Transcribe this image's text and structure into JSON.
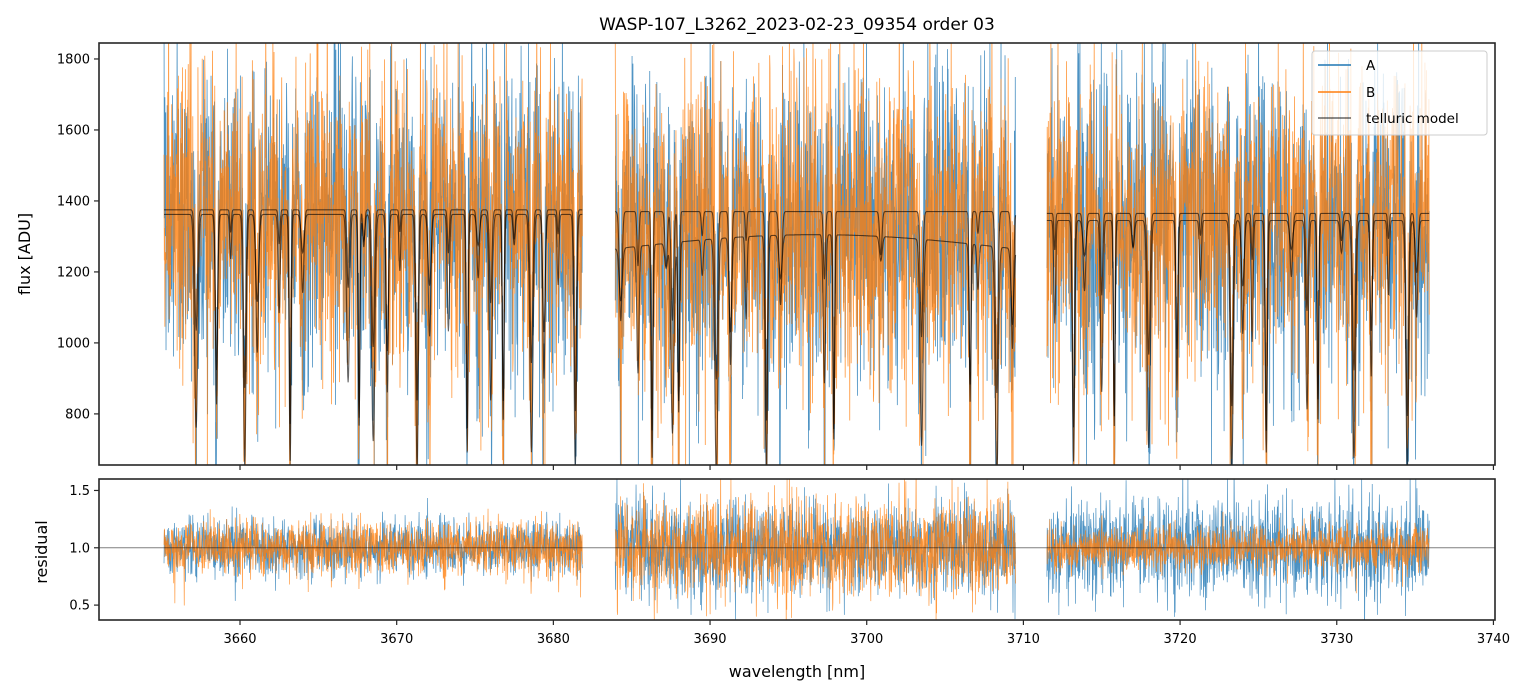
{
  "chart_data": [
    {
      "id": "flux-panel",
      "type": "line",
      "title": "WASP-107_L3262_2023-02-23_09354  order 03",
      "xlabel": "",
      "ylabel": "flux [ADU]",
      "xlim": [
        3651.0,
        3740.1
      ],
      "ylim": [
        656,
        1845
      ],
      "yticks": [
        800,
        1000,
        1200,
        1400,
        1600,
        1800
      ],
      "ytick_labels": [
        "800",
        "1000",
        "1200",
        "1400",
        "1600",
        "1800"
      ],
      "xticks": [
        3660,
        3670,
        3680,
        3690,
        3700,
        3710,
        3720,
        3730,
        3740
      ],
      "xtick_labels_hidden": true,
      "grid": false,
      "legend": {
        "placement": "top-right",
        "entries": [
          {
            "label": "A",
            "color": "#1f77b4"
          },
          {
            "label": "B",
            "color": "#ff7f0e"
          },
          {
            "label": "telluric model",
            "color": "#000000"
          }
        ]
      },
      "segments": [
        {
          "x_start": 3655.15,
          "x_end": 3681.85,
          "continuum_A": 1375,
          "continuum_B": 1380,
          "model_levels": [
            1375,
            1362
          ],
          "noise_sigma": 200
        },
        {
          "x_start": 3683.95,
          "x_end": 3709.5,
          "continuum_A": 1330,
          "continuum_B": 1335,
          "model_levels": [
            1370,
            1265
          ],
          "noise_sigma": 210
        },
        {
          "x_start": 3711.5,
          "x_end": 3735.9,
          "continuum_A": 1350,
          "continuum_B": 1360,
          "model_levels": [
            1365,
            1345
          ],
          "noise_sigma": 205
        }
      ],
      "telluric_lines_nm": [
        3657.2,
        3658.5,
        3659.4,
        3660.3,
        3661.1,
        3662.5,
        3663.2,
        3664.0,
        3666.9,
        3667.6,
        3667.9,
        3668.5,
        3669.4,
        3670.2,
        3671.3,
        3672.1,
        3673.3,
        3674.5,
        3675.2,
        3676.0,
        3676.8,
        3677.5,
        3678.6,
        3679.4,
        3680.3,
        3681.4,
        3684.3,
        3685.4,
        3686.3,
        3687.2,
        3687.6,
        3688.0,
        3689.5,
        3690.4,
        3691.3,
        3692.3,
        3693.6,
        3694.5,
        3697.3,
        3697.9,
        3700.9,
        3703.5,
        3706.6,
        3707.1,
        3708.3,
        3709.3,
        3712.0,
        3713.2,
        3713.9,
        3715.0,
        3715.8,
        3717.0,
        3718.0,
        3719.8,
        3721.3,
        3723.3,
        3724.0,
        3724.6,
        3725.5,
        3727.1,
        3728.1,
        3728.8,
        3730.3,
        3731.1,
        3732.2,
        3733.3,
        3734.5,
        3735.1
      ]
    },
    {
      "id": "residual-panel",
      "type": "line",
      "title": "",
      "xlabel": "wavelength [nm]",
      "ylabel": "residual",
      "xlim": [
        3651.0,
        3740.1
      ],
      "ylim": [
        0.37,
        1.6
      ],
      "yticks": [
        0.5,
        1.0,
        1.5
      ],
      "ytick_labels": [
        "0.5",
        "1.0",
        "1.5"
      ],
      "xticks": [
        3660,
        3670,
        3680,
        3690,
        3700,
        3710,
        3720,
        3730,
        3740
      ],
      "xtick_labels": [
        "3660",
        "3670",
        "3680",
        "3690",
        "3700",
        "3710",
        "3720",
        "3730",
        "3740"
      ],
      "grid": false,
      "reference_line": 1.0,
      "series": [
        {
          "name": "A",
          "color": "#1f77b4",
          "center": 1.0,
          "sigma_by_segment": [
            0.12,
            0.2,
            0.22
          ]
        },
        {
          "name": "B",
          "color": "#ff7f0e",
          "center": 1.0,
          "sigma_by_segment": [
            0.12,
            0.22,
            0.1
          ]
        }
      ]
    }
  ]
}
